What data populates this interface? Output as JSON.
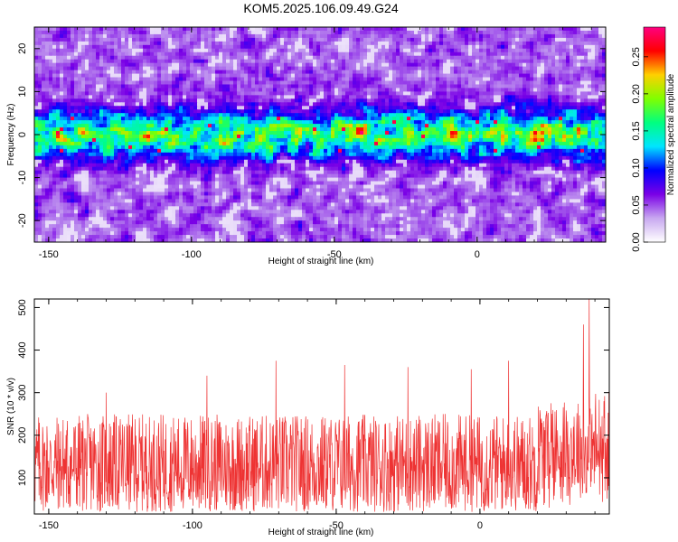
{
  "figure": {
    "title": "KOM5.2025.106.09.49.G24"
  },
  "chart_data": [
    {
      "type": "heatmap",
      "xlabel": "Height of straight line (km)",
      "ylabel": "Frequency (Hz)",
      "xlim": [
        -155,
        45
      ],
      "ylim": [
        -25,
        25
      ],
      "xticks": [
        "-150",
        "-100",
        "-50",
        "0"
      ],
      "yticks": [
        "20",
        "10",
        "0",
        "-10",
        "-20"
      ],
      "xtick_values": [
        -150,
        -100,
        -50,
        0
      ],
      "ytick_values": [
        20,
        10,
        0,
        -10,
        -20
      ],
      "colorbar": {
        "label": "Normalized spectral amplitude",
        "range": [
          0,
          0.29
        ],
        "ticks": [
          "0.00",
          "0.05",
          "0.10",
          "0.15",
          "0.20",
          "0.25"
        ],
        "tick_values": [
          0,
          0.05,
          0.1,
          0.15,
          0.2,
          0.25
        ],
        "colors": [
          "#ffffff",
          "#c8a8f0",
          "#7a00e6",
          "#0000ff",
          "#00e5ff",
          "#00ff80",
          "#80ff00",
          "#ffd000",
          "#ff0000",
          "#ff0080"
        ]
      },
      "band": {
        "center_hz": 0,
        "half_width_hz": 6,
        "description": "strong spectral energy concentrated near 0 Hz across all heights"
      }
    },
    {
      "type": "line",
      "xlabel": "Height of straight line (km)",
      "ylabel": "SNR (10 * v/v)",
      "xlim": [
        -155,
        45
      ],
      "ylim": [
        15,
        520
      ],
      "xticks": [
        "-150",
        "-100",
        "-50",
        "0"
      ],
      "yticks": [
        "500",
        "400",
        "300",
        "200",
        "100"
      ],
      "xtick_values": [
        -150,
        -100,
        -50,
        0
      ],
      "ytick_values": [
        500,
        400,
        300,
        200,
        100
      ],
      "color": "#ee3333",
      "typical_range": [
        20,
        250
      ],
      "peaks": [
        {
          "x": -130,
          "y": 300
        },
        {
          "x": -95,
          "y": 340
        },
        {
          "x": -71,
          "y": 375
        },
        {
          "x": -47,
          "y": 365
        },
        {
          "x": -25,
          "y": 360
        },
        {
          "x": -3,
          "y": 355
        },
        {
          "x": 10,
          "y": 375
        },
        {
          "x": 36,
          "y": 460
        },
        {
          "x": 38,
          "y": 520
        }
      ]
    }
  ]
}
